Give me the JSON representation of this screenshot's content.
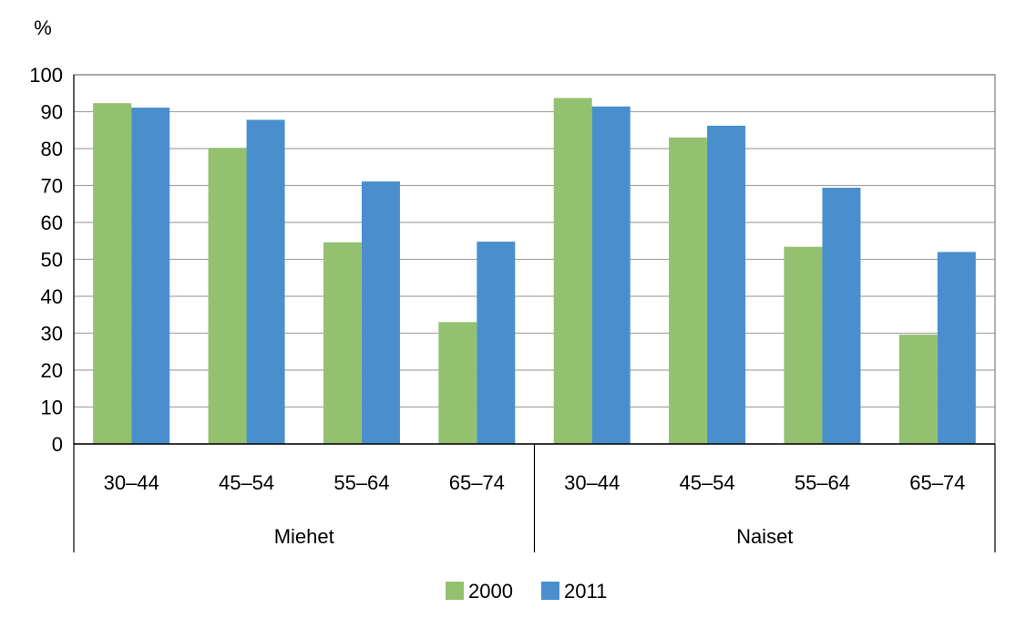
{
  "chart_data": {
    "type": "bar",
    "unit_label": "%",
    "ylim": [
      0,
      100
    ],
    "yticks": [
      0,
      10,
      20,
      30,
      40,
      50,
      60,
      70,
      80,
      90,
      100
    ],
    "grid": true,
    "legend_position": "bottom",
    "groups": [
      {
        "name": "Miehet",
        "categories": [
          "30–44",
          "45–54",
          "55–64",
          "65–74"
        ]
      },
      {
        "name": "Naiset",
        "categories": [
          "30–44",
          "45–54",
          "55–64",
          "65–74"
        ]
      }
    ],
    "series": [
      {
        "name": "2000",
        "color": "#93c16f",
        "values": [
          92.3,
          80.2,
          54.6,
          33.0,
          93.7,
          83.0,
          53.4,
          29.6
        ]
      },
      {
        "name": "2011",
        "color": "#4a8fcd",
        "values": [
          91.1,
          87.8,
          71.1,
          54.8,
          91.4,
          86.2,
          69.4,
          52.0
        ]
      }
    ]
  }
}
